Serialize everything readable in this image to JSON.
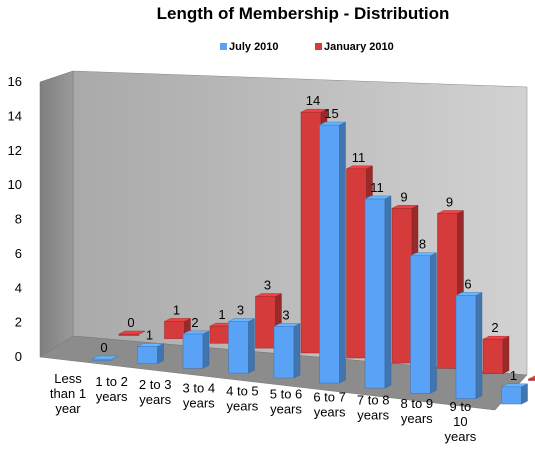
{
  "chart_data": {
    "type": "bar",
    "title": "Length of Membership - Distribution",
    "xlabel": "",
    "ylabel": "",
    "ylim": [
      0,
      16
    ],
    "yticks": [
      0,
      2,
      4,
      6,
      8,
      10,
      12,
      14,
      16
    ],
    "grid": false,
    "legend_position": "top",
    "three_d": true,
    "categories": [
      [
        "Less",
        "than 1",
        "year"
      ],
      [
        "1 to 2",
        "years"
      ],
      [
        "2 to 3",
        "years"
      ],
      [
        "3 to 4",
        "years"
      ],
      [
        "4 to 5",
        "years"
      ],
      [
        "5 to 6",
        "years"
      ],
      [
        "6 to 7",
        "years"
      ],
      [
        "7 to 8",
        "years"
      ],
      [
        "8 to 9",
        "years"
      ],
      [
        "9 to",
        "10",
        "years"
      ]
    ],
    "series": [
      {
        "name": "July 2010",
        "color": "#5aa2f5",
        "values": [
          0,
          1,
          2,
          3,
          3,
          15,
          11,
          8,
          6,
          1
        ]
      },
      {
        "name": "January 2010",
        "color": "#d63b3b",
        "values": [
          0,
          1,
          1,
          3,
          14,
          11,
          9,
          9,
          2,
          0
        ]
      }
    ]
  }
}
